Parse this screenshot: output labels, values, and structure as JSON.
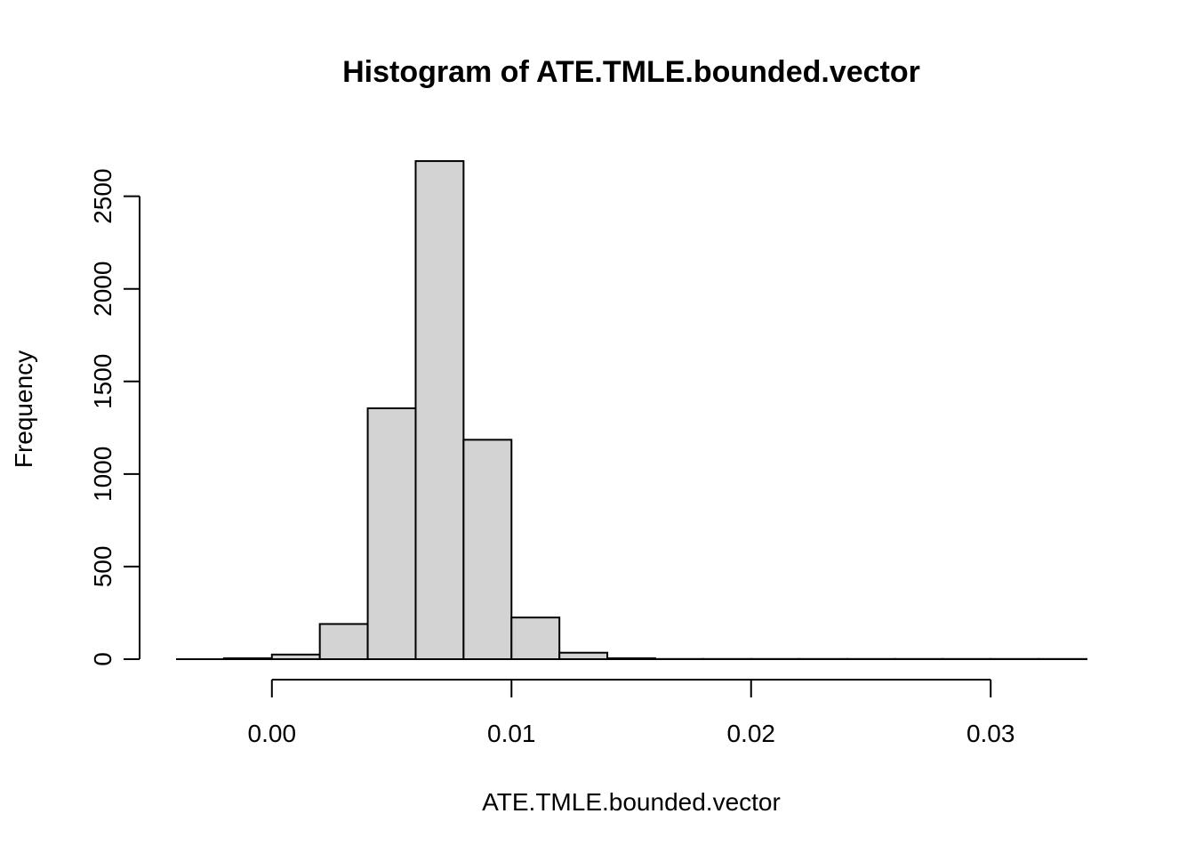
{
  "chart_data": {
    "type": "bar",
    "title": "Histogram of ATE.TMLE.bounded.vector",
    "xlabel": "ATE.TMLE.bounded.vector",
    "ylabel": "Frequency",
    "x_ticks": [
      0.0,
      0.01,
      0.02,
      0.03
    ],
    "x_tick_labels": [
      "0.00",
      "0.01",
      "0.02",
      "0.03"
    ],
    "y_ticks": [
      0,
      500,
      1000,
      1500,
      2000,
      2500
    ],
    "y_tick_labels": [
      "0",
      "500",
      "1000",
      "1500",
      "2000",
      "2500"
    ],
    "xlim": [
      -0.004,
      0.034
    ],
    "ylim": [
      0,
      2700
    ],
    "bin_edges": [
      -0.002,
      0.0,
      0.002,
      0.004,
      0.006,
      0.008,
      0.01,
      0.012,
      0.014,
      0.016,
      0.018,
      0.02,
      0.022,
      0.024,
      0.026,
      0.028,
      0.03,
      0.032,
      0.034
    ],
    "values": [
      5,
      25,
      190,
      1355,
      2690,
      1185,
      225,
      35,
      5,
      1,
      1,
      1,
      1,
      1,
      1,
      1,
      1,
      1
    ],
    "grid": false,
    "colors": {
      "bar_fill": "#d3d3d3",
      "bar_stroke": "#000000"
    }
  }
}
